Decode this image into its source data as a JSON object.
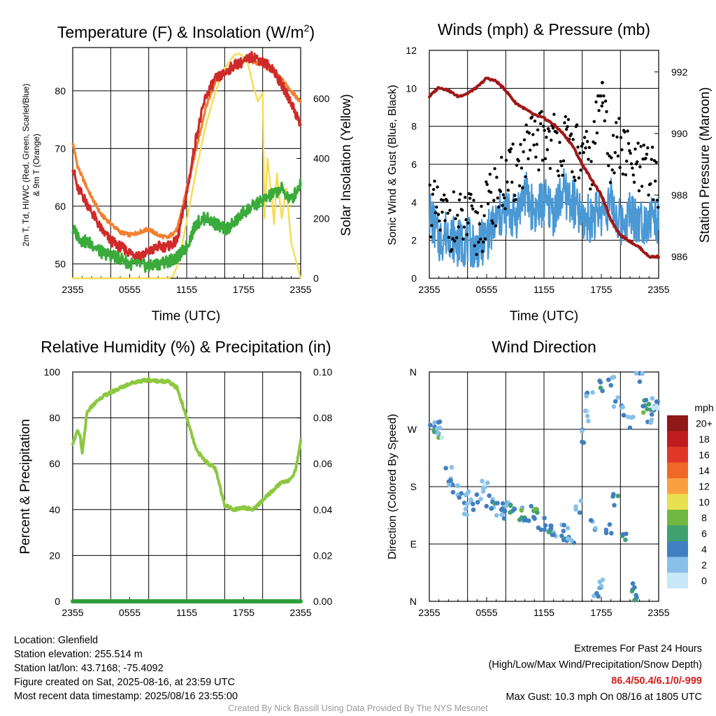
{
  "colors": {
    "temp_2m": "#cf2a2a",
    "dewpoint": "#3aaa3a",
    "temp_9m": "#f08030",
    "insolation": "#f5dc50",
    "gust": "#000000",
    "sonic": "#4a98d4",
    "pressure": "#a01818",
    "humidity": "#8cc840",
    "precip": "#2e9e3a",
    "extremes": "#d02020",
    "credit": "#9a9a9a"
  },
  "chart_data": [
    {
      "id": "temperature",
      "type": "line",
      "title": "Temperature (F) & Insolation (W/m²)",
      "title_main": "Temperature (F) & Insolation (W/m",
      "title_sup": "2",
      "title_end": ")",
      "xlabel": "Time (UTC)",
      "ylabel_line1": "2m T, Td, HI/WC (Red, Green, Scarlet/Blue)",
      "ylabel_line2": "& 9m T (Orange)",
      "y2label": "Solar Insolation (Yellow)",
      "x_hours": [
        0,
        6,
        12,
        18,
        24
      ],
      "xtick_labels": [
        "2355",
        "0555",
        "1155",
        "1755",
        "2355"
      ],
      "ylim": [
        47.5,
        87.5
      ],
      "yticks": [
        50,
        60,
        70,
        80
      ],
      "y2lim": [
        0,
        770
      ],
      "y2ticks": [
        0,
        200,
        400,
        600
      ],
      "series": [
        {
          "name": "9m T",
          "axis": "left",
          "color_key": "temp_9m",
          "x": [
            0,
            0.5,
            1,
            2,
            3,
            4,
            5,
            6,
            7,
            8,
            9,
            10,
            11,
            12,
            13,
            14,
            15,
            16,
            17,
            18,
            19,
            20,
            21,
            22,
            23,
            24
          ],
          "values": [
            71,
            67,
            65,
            61.5,
            58.5,
            57,
            55.5,
            55,
            55.5,
            56,
            55,
            54.5,
            56,
            63,
            70,
            77,
            81.5,
            83,
            84,
            85.5,
            85,
            84.5,
            83.5,
            82,
            80,
            78
          ]
        },
        {
          "name": "2m T",
          "axis": "left",
          "color_key": "temp_2m",
          "x": [
            0,
            0.5,
            1,
            2,
            3,
            4,
            5,
            6,
            7,
            8,
            9,
            10,
            11,
            12,
            13,
            14,
            15,
            16,
            17,
            18,
            19,
            20,
            21,
            22,
            23,
            24
          ],
          "values": [
            67,
            63,
            62,
            59,
            56,
            54,
            53,
            52,
            51.5,
            52,
            53,
            53,
            54,
            62,
            72,
            79,
            82,
            83,
            84.5,
            85,
            86,
            85,
            84,
            81,
            78,
            74
          ]
        },
        {
          "name": "Td",
          "axis": "left",
          "color_key": "dewpoint",
          "x": [
            0,
            0.5,
            1,
            2,
            3,
            4,
            5,
            6,
            7,
            8,
            9,
            10,
            11,
            12,
            13,
            14,
            15,
            16,
            17,
            18,
            19,
            20,
            21,
            22,
            23,
            24
          ],
          "values": [
            56,
            55,
            54,
            53.5,
            52,
            51.5,
            51,
            50,
            50,
            49.5,
            50,
            50.5,
            51,
            53,
            57,
            58,
            57,
            56,
            57,
            59,
            60,
            61,
            62,
            63,
            61,
            64
          ]
        },
        {
          "name": "Insolation",
          "axis": "right",
          "color_key": "insolation",
          "x": [
            0,
            2,
            4,
            6,
            8,
            10,
            10.5,
            11,
            11.5,
            12,
            13,
            14,
            15,
            16,
            17,
            17.5,
            18,
            18.5,
            19,
            19.5,
            20,
            20.2,
            20.5,
            21,
            21.2,
            21.5,
            22,
            22.5,
            23,
            24
          ],
          "values": [
            0,
            0,
            0,
            0,
            0,
            0,
            5,
            40,
            110,
            190,
            360,
            510,
            620,
            700,
            745,
            750,
            740,
            710,
            640,
            590,
            620,
            200,
            400,
            250,
            180,
            350,
            200,
            300,
            120,
            0
          ]
        }
      ]
    },
    {
      "id": "winds",
      "type": "line",
      "title": "Winds (mph) & Pressure (mb)",
      "xlabel": "Time (UTC)",
      "ylabel": "Sonic Wind & Gust (Blue, Black)",
      "y2label": "Station Pressure (Maroon)",
      "x_hours": [
        0,
        6,
        12,
        18,
        24
      ],
      "xtick_labels": [
        "2355",
        "0555",
        "1155",
        "1755",
        "2355"
      ],
      "ylim": [
        0,
        12
      ],
      "yticks": [
        0,
        2,
        4,
        6,
        8,
        10,
        12
      ],
      "y2lim": [
        985.3,
        992.7
      ],
      "y2ticks": [
        986,
        988,
        990,
        992
      ],
      "series": [
        {
          "name": "Sonic wind",
          "axis": "left",
          "color_key": "sonic",
          "x": [
            0,
            1,
            2,
            3,
            4,
            5,
            6,
            7,
            8,
            9,
            10,
            11,
            12,
            13,
            14,
            15,
            16,
            17,
            18,
            19,
            20,
            21,
            22,
            23,
            24
          ],
          "values": [
            3.5,
            2,
            2.5,
            1.8,
            2,
            1.5,
            2.2,
            3,
            3.5,
            3.2,
            4.5,
            3.5,
            4,
            3.5,
            4.5,
            4,
            3,
            3.2,
            3.5,
            4,
            2.8,
            3.5,
            3,
            3.2,
            3
          ]
        },
        {
          "name": "Gust",
          "axis": "left",
          "type": "scatter",
          "color_key": "gust",
          "x": [
            0,
            1,
            2,
            3,
            4,
            5,
            6,
            7,
            8,
            9,
            10,
            11,
            12,
            13,
            14,
            15,
            16,
            17,
            18,
            19,
            20,
            21,
            22,
            23,
            24
          ],
          "values": [
            4,
            3,
            3.2,
            2.8,
            3,
            2.5,
            3.5,
            4.5,
            5,
            5.5,
            6.5,
            7,
            7.5,
            7.2,
            7,
            6.8,
            6.2,
            6,
            10.3,
            6.5,
            7,
            6,
            5.5,
            5.5,
            5.2
          ]
        },
        {
          "name": "Pressure",
          "axis": "right",
          "color_key": "pressure",
          "x": [
            0,
            1,
            2,
            3,
            4,
            5,
            6,
            7,
            8,
            9,
            10,
            11,
            12,
            13,
            14,
            15,
            16,
            17,
            18,
            19,
            20,
            21,
            22,
            23,
            24
          ],
          "values": [
            991.2,
            991.5,
            991.4,
            991.2,
            991.3,
            991.5,
            991.8,
            991.7,
            991.4,
            991.0,
            990.8,
            990.6,
            990.5,
            990.3,
            990.0,
            989.6,
            989.0,
            988.5,
            988.0,
            987.2,
            986.7,
            986.5,
            986.3,
            986.0,
            986.0
          ]
        }
      ]
    },
    {
      "id": "humidity",
      "type": "line",
      "title": "Relative Humidity (%) & Precipitation (in)",
      "xlabel": "",
      "ylabel": "Percent & Precipitation",
      "x_hours": [
        0,
        6,
        12,
        18,
        24
      ],
      "xtick_labels": [
        "2355",
        "0555",
        "1155",
        "1755",
        "2355"
      ],
      "ylim": [
        0,
        100
      ],
      "yticks": [
        0,
        20,
        40,
        60,
        80,
        100
      ],
      "y2lim": [
        0,
        0.1
      ],
      "y2ticks": [
        0.0,
        0.02,
        0.04,
        0.06,
        0.08,
        0.1
      ],
      "y2tick_labels": [
        "0.00",
        "0.02",
        "0.04",
        "0.06",
        "0.08",
        "0.10"
      ],
      "series": [
        {
          "name": "RH",
          "axis": "left",
          "color_key": "humidity",
          "x": [
            0,
            0.5,
            0.8,
            1,
            1.5,
            2,
            3,
            4,
            5,
            6,
            7,
            8,
            9,
            10,
            11,
            12,
            13,
            14,
            15,
            16,
            17,
            18,
            19,
            20,
            21,
            22,
            23,
            23.5,
            24
          ],
          "values": [
            69,
            74,
            72,
            64,
            82,
            85,
            89,
            91,
            93,
            95,
            96,
            96.5,
            96,
            96,
            93,
            80,
            66,
            61,
            58,
            42,
            40,
            41,
            40,
            44,
            48,
            52,
            53,
            58,
            70
          ]
        },
        {
          "name": "Precipitation",
          "axis": "right",
          "color_key": "precip",
          "x": [
            0,
            24
          ],
          "values": [
            0,
            0
          ]
        }
      ]
    },
    {
      "id": "wind_direction",
      "type": "scatter",
      "title": "Wind Direction",
      "xlabel": "",
      "ylabel": "Direction (Colored By Speed)",
      "x_hours": [
        0,
        6,
        12,
        18,
        24
      ],
      "xtick_labels": [
        "2355",
        "0555",
        "1155",
        "1755",
        "2355"
      ],
      "ylim": [
        0,
        360
      ],
      "yticks": [
        0,
        90,
        180,
        270,
        360
      ],
      "ytick_labels": [
        "N",
        "E",
        "S",
        "W",
        "N"
      ],
      "colorbar": {
        "title": "mph",
        "labels": [
          "0",
          "2",
          "4",
          "6",
          "8",
          "10",
          "12",
          "14",
          "16",
          "18",
          "20+"
        ],
        "colors": [
          "#c8e8f8",
          "#88c0e8",
          "#4080c0",
          "#40a070",
          "#70b840",
          "#e8e050",
          "#f8a040",
          "#f06828",
          "#e03828",
          "#c01c20",
          "#901818"
        ]
      },
      "points": [
        {
          "x": 0.3,
          "dir": 270,
          "spd": 3
        },
        {
          "x": 0.6,
          "dir": 268,
          "spd": 6
        },
        {
          "x": 0.9,
          "dir": 272,
          "spd": 4
        },
        {
          "x": 1.2,
          "dir": 265,
          "spd": 1
        },
        {
          "x": 2,
          "dir": 200,
          "spd": 2
        },
        {
          "x": 2.3,
          "dir": 180,
          "spd": 3
        },
        {
          "x": 2.8,
          "dir": 175,
          "spd": 2
        },
        {
          "x": 3.3,
          "dir": 160,
          "spd": 3
        },
        {
          "x": 3.7,
          "dir": 145,
          "spd": 1
        },
        {
          "x": 4.2,
          "dir": 165,
          "spd": 2
        },
        {
          "x": 4.7,
          "dir": 150,
          "spd": 3
        },
        {
          "x": 5.3,
          "dir": 170,
          "spd": 2
        },
        {
          "x": 5.8,
          "dir": 185,
          "spd": 1
        },
        {
          "x": 6.3,
          "dir": 160,
          "spd": 3
        },
        {
          "x": 6.8,
          "dir": 140,
          "spd": 2
        },
        {
          "x": 7.3,
          "dir": 155,
          "spd": 4
        },
        {
          "x": 7.8,
          "dir": 135,
          "spd": 2
        },
        {
          "x": 8.3,
          "dir": 150,
          "spd": 3
        },
        {
          "x": 8.8,
          "dir": 145,
          "spd": 4
        },
        {
          "x": 9.3,
          "dir": 140,
          "spd": 2
        },
        {
          "x": 9.8,
          "dir": 135,
          "spd": 6
        },
        {
          "x": 10.3,
          "dir": 130,
          "spd": 3
        },
        {
          "x": 10.8,
          "dir": 140,
          "spd": 5
        },
        {
          "x": 11.3,
          "dir": 145,
          "spd": 7
        },
        {
          "x": 11.8,
          "dir": 120,
          "spd": 4
        },
        {
          "x": 12.3,
          "dir": 115,
          "spd": 3
        },
        {
          "x": 12.8,
          "dir": 110,
          "spd": 4
        },
        {
          "x": 13.3,
          "dir": 105,
          "spd": 2
        },
        {
          "x": 13.8,
          "dir": 100,
          "spd": 4
        },
        {
          "x": 14.3,
          "dir": 110,
          "spd": 2
        },
        {
          "x": 14.8,
          "dir": 95,
          "spd": 3
        },
        {
          "x": 15.6,
          "dir": 150,
          "spd": 2
        },
        {
          "x": 16.2,
          "dir": 260,
          "spd": 2
        },
        {
          "x": 16.5,
          "dir": 290,
          "spd": 1
        },
        {
          "x": 16.8,
          "dir": 330,
          "spd": 2
        },
        {
          "x": 17.2,
          "dir": 120,
          "spd": 3
        },
        {
          "x": 17.5,
          "dir": 10,
          "spd": 2
        },
        {
          "x": 17.8,
          "dir": 30,
          "spd": 3
        },
        {
          "x": 18.2,
          "dir": 340,
          "spd": 4
        },
        {
          "x": 18.6,
          "dir": 110,
          "spd": 4
        },
        {
          "x": 19,
          "dir": 350,
          "spd": 2
        },
        {
          "x": 19.3,
          "dir": 160,
          "spd": 4
        },
        {
          "x": 19.7,
          "dir": 315,
          "spd": 2
        },
        {
          "x": 20.1,
          "dir": 300,
          "spd": 3
        },
        {
          "x": 20.5,
          "dir": 100,
          "spd": 4
        },
        {
          "x": 20.9,
          "dir": 280,
          "spd": 2
        },
        {
          "x": 21.2,
          "dir": 20,
          "spd": 3
        },
        {
          "x": 21.6,
          "dir": 10,
          "spd": 4
        },
        {
          "x": 22,
          "dir": 355,
          "spd": 2
        },
        {
          "x": 22.4,
          "dir": 310,
          "spd": 4
        },
        {
          "x": 22.8,
          "dir": 305,
          "spd": 6
        },
        {
          "x": 23.2,
          "dir": 290,
          "spd": 2
        },
        {
          "x": 23.6,
          "dir": 310,
          "spd": 3
        },
        {
          "x": 23.9,
          "dir": 300,
          "spd": 1
        }
      ]
    }
  ],
  "footer_left": {
    "location": "Location: Glenfield",
    "elevation": "Station elevation: 255.514 m",
    "latlon": "Station lat/lon: 43.7168; -75.4092",
    "created": "Figure created on Sat, 2025-08-16, at 23:59 UTC",
    "recent": "Most recent data timestamp: 2025/08/16 23:55:00"
  },
  "footer_right": {
    "heading": "Extremes For Past 24 Hours",
    "subheading": "(High/Low/Max Wind/Precipitation/Snow Depth)",
    "values": "86.4/50.4/6.1/0/-999",
    "gust": "Max Gust: 10.3 mph On 08/16 at 1805 UTC"
  },
  "credit": "Created By Nick Bassill Using Data Provided By The NYS Mesonet"
}
